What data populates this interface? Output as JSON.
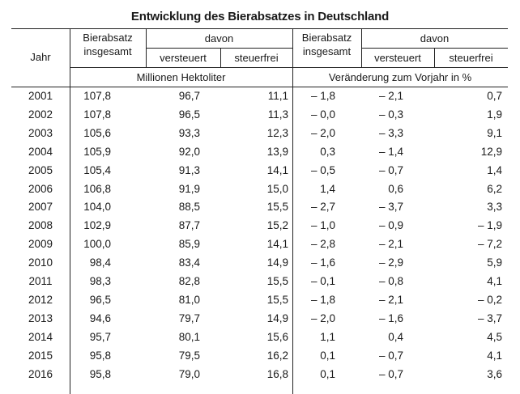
{
  "title": "Entwicklung des Bierabsatzes in Deutschland",
  "header": {
    "jahr": "Jahr",
    "bierabsatz_line1": "Bierabsatz",
    "bierabsatz_line2": "insgesamt",
    "davon": "davon",
    "versteuert": "versteuert",
    "steuerfrei": "steuerfrei",
    "unit_left": "Millionen Hektoliter",
    "unit_right": "Veränderung zum Vorjahr in %"
  },
  "rows": [
    [
      "2001",
      "107,8",
      "96,7",
      "11,1",
      "– 1,8",
      "– 2,1",
      "0,7"
    ],
    [
      "2002",
      "107,8",
      "96,5",
      "11,3",
      "– 0,0",
      "– 0,3",
      "1,9"
    ],
    [
      "2003",
      "105,6",
      "93,3",
      "12,3",
      "– 2,0",
      "– 3,3",
      "9,1"
    ],
    [
      "2004",
      "105,9",
      "92,0",
      "13,9",
      "0,3",
      "– 1,4",
      "12,9"
    ],
    [
      "2005",
      "105,4",
      "91,3",
      "14,1",
      "– 0,5",
      "– 0,7",
      "1,4"
    ],
    [
      "2006",
      "106,8",
      "91,9",
      "15,0",
      "1,4",
      "0,6",
      "6,2"
    ],
    [
      "2007",
      "104,0",
      "88,5",
      "15,5",
      "– 2,7",
      "– 3,7",
      "3,3"
    ],
    [
      "2008",
      "102,9",
      "87,7",
      "15,2",
      "– 1,0",
      "– 0,9",
      "– 1,9"
    ],
    [
      "2009",
      "100,0",
      "85,9",
      "14,1",
      "– 2,8",
      "– 2,1",
      "– 7,2"
    ],
    [
      "2010",
      "98,4",
      "83,4",
      "14,9",
      "– 1,6",
      "– 2,9",
      "5,9"
    ],
    [
      "2011",
      "98,3",
      "82,8",
      "15,5",
      "– 0,1",
      "– 0,8",
      "4,1"
    ],
    [
      "2012",
      "96,5",
      "81,0",
      "15,5",
      "– 1,8",
      "– 2,1",
      "– 0,2"
    ],
    [
      "2013",
      "94,6",
      "79,7",
      "14,9",
      "– 2,0",
      "– 1,6",
      "– 3,7"
    ],
    [
      "2014",
      "95,7",
      "80,1",
      "15,6",
      "1,1",
      "0,4",
      "4,5"
    ],
    [
      "2015",
      "95,8",
      "79,5",
      "16,2",
      "0,1",
      "– 0,7",
      "4,1"
    ],
    [
      "2016",
      "95,8",
      "79,0",
      "16,8",
      "0,1",
      "– 0,7",
      "3,6"
    ]
  ]
}
